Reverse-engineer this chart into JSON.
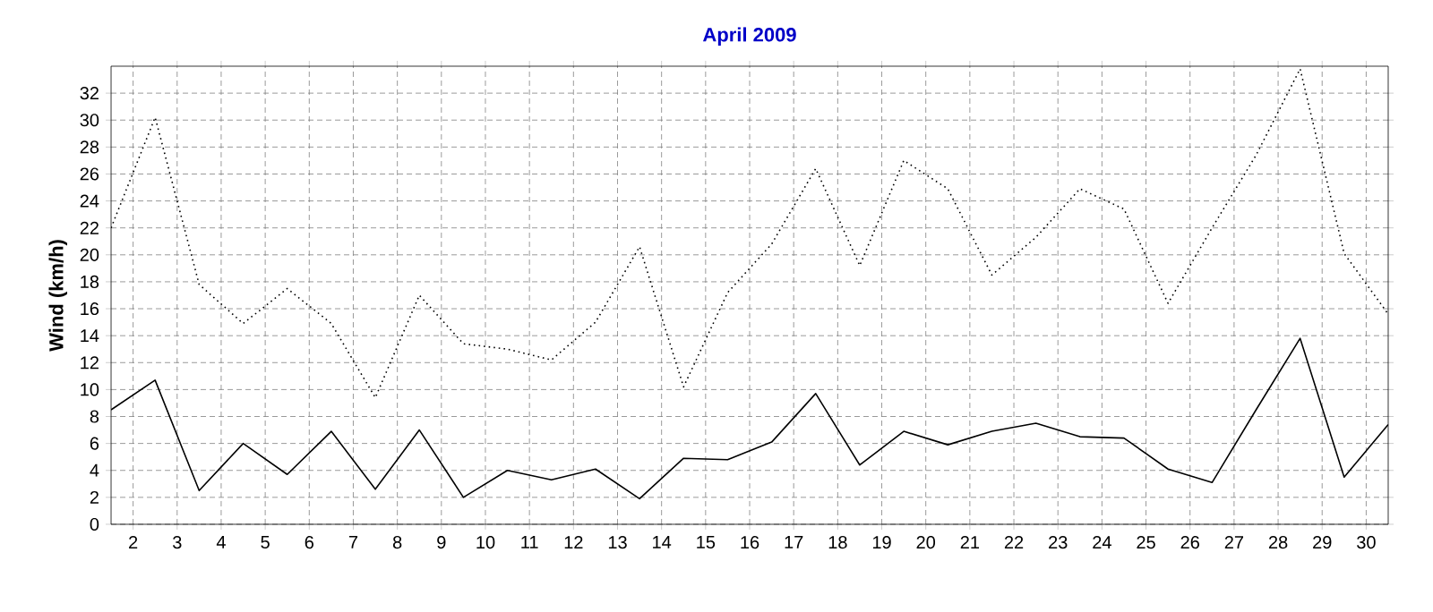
{
  "chart_data": {
    "type": "line",
    "title": "April 2009",
    "ylabel": "Wind  (km/h)",
    "x": [
      1.5,
      2.5,
      3.5,
      4.5,
      5.5,
      6.5,
      7.5,
      8.5,
      9.5,
      10.5,
      11.5,
      12.5,
      13.5,
      14.5,
      15.5,
      16.5,
      17.5,
      18.5,
      19.5,
      20.5,
      21.5,
      22.5,
      23.5,
      24.5,
      25.5,
      26.5,
      27.5,
      28.5,
      29.5,
      30.5
    ],
    "series": [
      {
        "color": "#000000",
        "line_style": "dotted",
        "values": [
          22,
          30.2,
          17.8,
          14.9,
          17.5,
          14.9,
          9.4,
          17.0,
          13.4,
          13.0,
          12.2,
          15.0,
          20.6,
          10.2,
          17.2,
          20.8,
          26.4,
          19.2,
          27.0,
          24.9,
          18.5,
          21.3,
          24.9,
          23.4,
          16.4,
          22.0,
          27.4,
          33.8,
          20.1,
          15.6
        ]
      },
      {
        "color": "#000000",
        "line_style": "solid",
        "values": [
          8.5,
          10.7,
          2.5,
          6.0,
          3.7,
          6.9,
          2.6,
          7.0,
          2.0,
          4.0,
          3.3,
          4.1,
          1.9,
          4.9,
          4.8,
          6.1,
          9.7,
          4.4,
          6.9,
          5.9,
          6.9,
          7.5,
          6.5,
          6.4,
          4.1,
          3.1,
          8.5,
          13.8,
          3.5,
          7.4
        ]
      }
    ],
    "xlim": [
      1.5,
      30.5
    ],
    "xticks": [
      2,
      3,
      4,
      5,
      6,
      7,
      8,
      9,
      10,
      11,
      12,
      13,
      14,
      15,
      16,
      17,
      18,
      19,
      20,
      21,
      22,
      23,
      24,
      25,
      26,
      27,
      28,
      29,
      30
    ],
    "ylim": [
      0,
      34
    ],
    "yticks": [
      0,
      2,
      4,
      6,
      8,
      10,
      12,
      14,
      16,
      18,
      20,
      22,
      24,
      26,
      28,
      30,
      32
    ],
    "grid": true,
    "marker": "none"
  }
}
